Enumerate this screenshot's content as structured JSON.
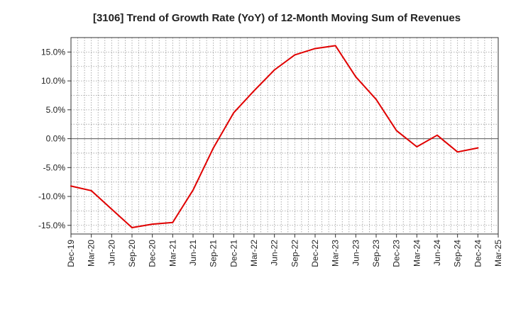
{
  "chart_data": {
    "type": "line",
    "title": "[3106]  Trend of Growth Rate (YoY) of 12-Month Moving Sum of Revenues",
    "xlabel": "",
    "ylabel": "",
    "x_tick_labels": [
      "Dec-19",
      "Mar-20",
      "Jun-20",
      "Sep-20",
      "Dec-20",
      "Mar-21",
      "Jun-21",
      "Sep-21",
      "Dec-21",
      "Mar-22",
      "Jun-22",
      "Sep-22",
      "Dec-22",
      "Mar-23",
      "Jun-23",
      "Sep-23",
      "Dec-23",
      "Mar-24",
      "Jun-24",
      "Sep-24",
      "Dec-24",
      "Mar-25"
    ],
    "y_ticks": [
      15,
      10,
      5,
      0,
      -5,
      -10,
      -15
    ],
    "y_tick_labels": [
      "15.0%",
      "10.0%",
      "5.0%",
      "0.0%",
      "-5.0%",
      "-10.0%",
      "-15.0%"
    ],
    "ylim": [
      -16.5,
      17.5
    ],
    "x_months_per_tick": 3,
    "grid": true,
    "series": [
      {
        "name": "",
        "color": "#e00000",
        "x": [
          "Dec-19",
          "Mar-20",
          "Jun-20",
          "Sep-20",
          "Dec-20",
          "Mar-21",
          "Jun-21",
          "Sep-21",
          "Dec-21",
          "Mar-22",
          "Jun-22",
          "Sep-22",
          "Dec-22",
          "Mar-23",
          "Jun-23",
          "Sep-23",
          "Dec-23",
          "Mar-24",
          "Jun-24",
          "Sep-24",
          "Dec-24"
        ],
        "values": [
          -8.2,
          -9.0,
          -12.2,
          -15.4,
          -14.8,
          -14.5,
          -8.9,
          -1.6,
          4.5,
          8.3,
          11.9,
          14.5,
          15.6,
          16.1,
          10.7,
          6.8,
          1.4,
          -1.4,
          0.6,
          -2.3,
          -1.6
        ]
      }
    ]
  }
}
